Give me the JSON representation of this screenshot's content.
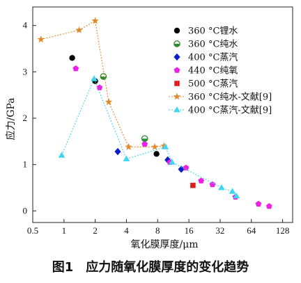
{
  "caption": "图1　应力随氧化膜厚度的变化趋势",
  "chart_data": {
    "type": "scatter",
    "title": "",
    "xlabel": "氧化膜厚度/μm",
    "ylabel": "应力/GPa",
    "xscale": "log2",
    "xlim": [
      0.5,
      160
    ],
    "ylim": [
      -0.25,
      4.4
    ],
    "xticks": [
      0.5,
      1,
      2,
      4,
      8,
      16,
      32,
      64,
      128
    ],
    "xtick_labels": [
      "0.5",
      "1",
      "2",
      "4",
      "8",
      "16",
      "32",
      "64",
      "128"
    ],
    "yticks": [
      0,
      1,
      2,
      3,
      4
    ],
    "ytick_labels": [
      "0",
      "1",
      "2",
      "3",
      "4"
    ],
    "legend_position": "top-right",
    "series": [
      {
        "name": "360 °C锂水",
        "marker": "circle",
        "color": "#000000",
        "x": [
          1.2,
          2.0,
          7.8
        ],
        "y": [
          3.3,
          2.8,
          1.23
        ]
      },
      {
        "name": "360 °C纯水",
        "marker": "half-circle",
        "color": "#2e8b2e",
        "x": [
          2.4,
          6.0
        ],
        "y": [
          2.9,
          1.56
        ]
      },
      {
        "name": "400 °C蒸汽",
        "marker": "diamond",
        "color": "#0a1fc8",
        "x": [
          3.3,
          10.0,
          13.5
        ],
        "y": [
          1.28,
          1.1,
          0.9
        ]
      },
      {
        "name": "440 °C纯氧",
        "marker": "pentagon",
        "color": "#ee1fe6",
        "x": [
          1.3,
          2.2,
          6.0,
          10.5,
          15.0,
          21.0,
          27.0,
          45.0,
          75.0,
          95.0
        ],
        "y": [
          3.07,
          2.66,
          1.44,
          1.05,
          0.93,
          0.65,
          0.57,
          0.3,
          0.15,
          0.1
        ]
      },
      {
        "name": "500 °C蒸汽",
        "marker": "square",
        "color": "#e01c1c",
        "x": [
          17.5
        ],
        "y": [
          0.55
        ]
      },
      {
        "name": "360 °C纯水-文献[9]",
        "marker": "star",
        "color": "#e08a2a",
        "line": "dotted",
        "x": [
          0.6,
          1.4,
          2.0,
          2.7,
          4.2,
          7.5,
          9.2
        ],
        "y": [
          3.7,
          3.9,
          4.1,
          2.35,
          1.38,
          1.38,
          1.4
        ]
      },
      {
        "name": "400 °C蒸汽-文献[9]",
        "marker": "triangle",
        "color": "#3fd6ee",
        "line": "dotted",
        "x": [
          0.95,
          1.95,
          4.0,
          9.5,
          11.0,
          33.0,
          42.0,
          46.0
        ],
        "y": [
          1.2,
          2.85,
          1.12,
          1.38,
          1.05,
          0.5,
          0.42,
          0.32
        ]
      }
    ]
  }
}
